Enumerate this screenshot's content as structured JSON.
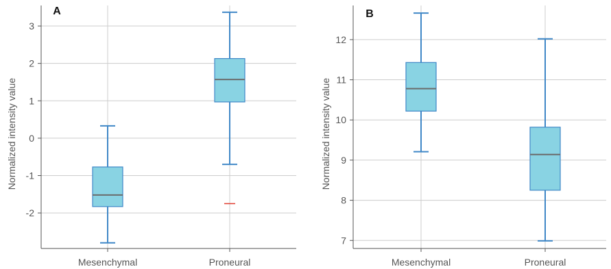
{
  "colors": {
    "box_fill": "#89d3e3",
    "box_stroke": "#3f87c7",
    "whisker": "#3f87c7",
    "median": "#6b6b6b",
    "outlier": "#e03b2e",
    "grid": "#cccccc",
    "axis": "#555555"
  },
  "chart_data": [
    {
      "type": "box",
      "panel_label": "A",
      "ylabel": "Normalized intensity value",
      "categories": [
        "Mesenchymal",
        "Proneural"
      ],
      "ylim": [
        -2.95,
        3.55
      ],
      "yticks": [
        -2,
        -1,
        0,
        1,
        2,
        3
      ],
      "ytick_labels": [
        "-2",
        "-1",
        "0",
        "1",
        "2",
        "3"
      ],
      "grid": true,
      "boxes": [
        {
          "category": "Mesenchymal",
          "min": -2.8,
          "q1": -1.83,
          "median": -1.52,
          "q3": -0.77,
          "max": 0.33,
          "outliers": []
        },
        {
          "category": "Proneural",
          "min": -0.7,
          "q1": 0.97,
          "median": 1.57,
          "q3": 2.13,
          "max": 3.37,
          "outliers": [
            -1.75
          ]
        }
      ]
    },
    {
      "type": "box",
      "panel_label": "B",
      "ylabel": "Normalized intensity value",
      "categories": [
        "Mesenchymal",
        "Proneural"
      ],
      "ylim": [
        6.8,
        12.85
      ],
      "yticks": [
        7,
        8,
        9,
        10,
        11,
        12
      ],
      "ytick_labels": [
        "7",
        "8",
        "9",
        "10",
        "11",
        "12"
      ],
      "grid": true,
      "boxes": [
        {
          "category": "Mesenchymal",
          "min": 9.21,
          "q1": 10.22,
          "median": 10.78,
          "q3": 11.43,
          "max": 12.66,
          "outliers": []
        },
        {
          "category": "Proneural",
          "min": 6.99,
          "q1": 8.25,
          "median": 9.14,
          "q3": 9.82,
          "max": 12.02,
          "outliers": []
        }
      ]
    }
  ]
}
